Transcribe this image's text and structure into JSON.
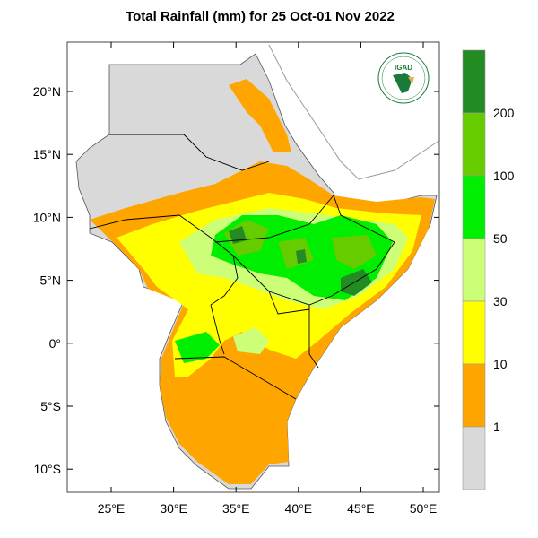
{
  "title": "Total Rainfall (mm) for 25 Oct-01 Nov 2022",
  "logo": {
    "text": "IGAD"
  },
  "map": {
    "lon_range": [
      21.5,
      51.3
    ],
    "lat_range": [
      -11.9,
      23.9
    ],
    "lat_ticks": [
      "20°N",
      "15°N",
      "10°N",
      "5°N",
      "0°",
      "5°S",
      "10°S"
    ],
    "lon_ticks": [
      "25°E",
      "30°E",
      "35°E",
      "40°E",
      "45°E",
      "50°E"
    ]
  },
  "legend": {
    "unit": "mm",
    "labels": [
      "200",
      "100",
      "50",
      "30",
      "10",
      "1"
    ],
    "colors": [
      "#228b22",
      "#66cc00",
      "#00ee00",
      "#ccff77",
      "#ffff00",
      "#ffa500",
      "#d9d9d9"
    ]
  }
}
